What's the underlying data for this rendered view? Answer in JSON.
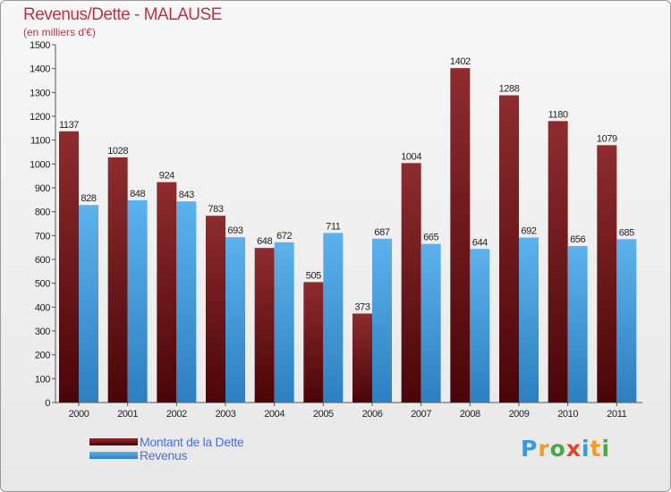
{
  "header": {
    "title": "Revenus/Dette - MALAUSE",
    "subtitle": "(en milliers d'€)"
  },
  "colors": {
    "dette": "#7a1f22",
    "revenus": "#4aa3e2",
    "title": "#b5344a",
    "legend_text": "#4a6fd6"
  },
  "chart_data": {
    "type": "bar",
    "title": "Revenus/Dette - MALAUSE",
    "subtitle": "(en milliers d'€)",
    "categories": [
      "2000",
      "2001",
      "2002",
      "2003",
      "2004",
      "2005",
      "2006",
      "2007",
      "2008",
      "2009",
      "2010",
      "2011"
    ],
    "series": [
      {
        "name": "Montant de la Dette",
        "values": [
          1137,
          1028,
          924,
          783,
          648,
          505,
          373,
          1004,
          1402,
          1288,
          1180,
          1079
        ]
      },
      {
        "name": "Revenus",
        "values": [
          828,
          848,
          843,
          693,
          672,
          711,
          687,
          665,
          644,
          692,
          656,
          685
        ]
      }
    ],
    "ylim": [
      0,
      1500
    ],
    "yticks": [
      0,
      100,
      200,
      300,
      400,
      500,
      600,
      700,
      800,
      900,
      1000,
      1100,
      1200,
      1300,
      1400,
      1500
    ],
    "grid": false,
    "legend_position": "bottom-left"
  },
  "legend": {
    "items": [
      {
        "label": "Montant de la Dette",
        "color": "#7a1f22"
      },
      {
        "label": "Revenus",
        "color": "#4aa3e2"
      }
    ]
  },
  "logo": {
    "letters": [
      "P",
      "r",
      "o",
      "x",
      "i",
      "t",
      "i"
    ]
  }
}
